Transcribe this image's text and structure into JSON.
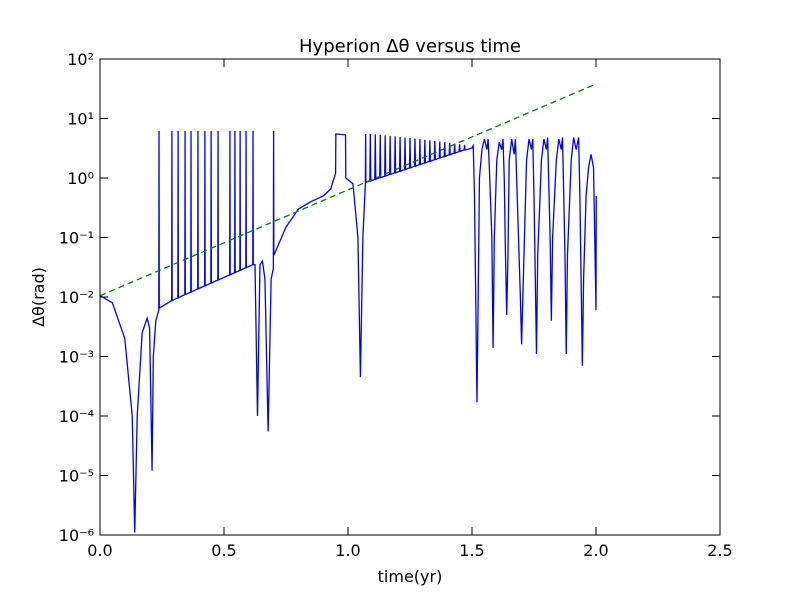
{
  "chart_data": {
    "type": "line",
    "title": "Hyperion Δθ versus time",
    "xlabel": "time(yr)",
    "ylabel": "Δθ(rad)",
    "yscale": "log",
    "xlim": [
      0,
      2.5
    ],
    "ylim": [
      1e-06,
      100
    ],
    "xticks": [
      {
        "value": 0,
        "label": "0.0"
      },
      0.5,
      {
        "value": 1,
        "label": "1.0"
      },
      1.5,
      {
        "value": 2,
        "label": "2.0"
      },
      2.5
    ],
    "yticks": [
      {
        "value": 1e-06,
        "label": "10⁻⁶"
      },
      {
        "value": 1e-05,
        "label": "10⁻⁵"
      },
      {
        "value": 0.0001,
        "label": "10⁻⁴"
      },
      {
        "value": 0.001,
        "label": "10⁻³"
      },
      {
        "value": 0.01,
        "label": "10⁻²"
      },
      {
        "value": 0.1,
        "label": "10⁻¹"
      },
      {
        "value": 1,
        "label": "10⁰"
      },
      {
        "value": 10,
        "label": "10¹"
      },
      {
        "value": 100,
        "label": "10²"
      }
    ],
    "series": [
      {
        "color": "#0000ff",
        "linestyle": "solid",
        "x": [
          0,
          0.05,
          0.1,
          0.13,
          0.14,
          0.15,
          0.17,
          0.19,
          0.2,
          0.21,
          0.215,
          0.225,
          0.237,
          0.238,
          0.239,
          0.289,
          0.29,
          0.291,
          0.314,
          0.315,
          0.316,
          0.342,
          0.343,
          0.344,
          0.366,
          0.367,
          0.368,
          0.394,
          0.395,
          0.396,
          0.422,
          0.423,
          0.424,
          0.447,
          0.448,
          0.449,
          0.475,
          0.476,
          0.477,
          0.523,
          0.524,
          0.525,
          0.543,
          0.544,
          0.545,
          0.564,
          0.565,
          0.566,
          0.588,
          0.589,
          0.59,
          0.616,
          0.617,
          0.618,
          0.625,
          0.635,
          0.645,
          0.655,
          0.665,
          0.678,
          0.69,
          0.699,
          0.7,
          0.701,
          0.75,
          0.8,
          0.85,
          0.9,
          0.93,
          0.95,
          0.951,
          0.99,
          0.991,
          1.02,
          1.04,
          1.05,
          1.06,
          1.07,
          1.071,
          1.072,
          1.088,
          1.09,
          1.092,
          1.108,
          1.11,
          1.112,
          1.128,
          1.13,
          1.132,
          1.148,
          1.15,
          1.152,
          1.168,
          1.17,
          1.172,
          1.188,
          1.19,
          1.192,
          1.208,
          1.21,
          1.212,
          1.228,
          1.23,
          1.232,
          1.248,
          1.25,
          1.252,
          1.268,
          1.27,
          1.272,
          1.288,
          1.29,
          1.292,
          1.308,
          1.31,
          1.312,
          1.328,
          1.33,
          1.332,
          1.348,
          1.35,
          1.352,
          1.368,
          1.37,
          1.372,
          1.388,
          1.39,
          1.392,
          1.408,
          1.41,
          1.412,
          1.428,
          1.43,
          1.432,
          1.448,
          1.45,
          1.452,
          1.468,
          1.47,
          1.472,
          1.48,
          1.5,
          1.505,
          1.51,
          1.515,
          1.52,
          1.525,
          1.53,
          1.54,
          1.55,
          1.56,
          1.565,
          1.57,
          1.58,
          1.585,
          1.59,
          1.6,
          1.61,
          1.62,
          1.625,
          1.63,
          1.635,
          1.64,
          1.645,
          1.65,
          1.66,
          1.67,
          1.675,
          1.68,
          1.695,
          1.7,
          1.705,
          1.72,
          1.73,
          1.74,
          1.745,
          1.75,
          1.76,
          1.765,
          1.78,
          1.79,
          1.8,
          1.805,
          1.815,
          1.82,
          1.825,
          1.84,
          1.85,
          1.86,
          1.865,
          1.875,
          1.88,
          1.885,
          1.9,
          1.91,
          1.92,
          1.93,
          1.935,
          1.94,
          1.945,
          1.95,
          1.96,
          1.97,
          1.98,
          1.99,
          1.995,
          2.0,
          2.001
        ],
        "values": [
          0.0105,
          0.008,
          0.002,
          0.0001,
          1.1e-06,
          0.0001,
          0.0025,
          0.0044,
          0.003,
          1.2e-05,
          0.001,
          0.004,
          0.006,
          6.2,
          0.0065,
          0.0087,
          6.2,
          0.0087,
          0.0097,
          6.2,
          0.0097,
          0.011,
          6.2,
          0.011,
          0.0121,
          6.2,
          0.0121,
          0.0137,
          6.2,
          0.0137,
          0.0154,
          6.2,
          0.0154,
          0.0171,
          6.2,
          0.0171,
          0.0193,
          6.2,
          0.0193,
          0.0236,
          6.2,
          0.0236,
          0.0257,
          6.2,
          0.0257,
          0.0281,
          6.2,
          0.0281,
          0.0311,
          6.2,
          0.0311,
          0.035,
          6.2,
          0.035,
          0.035,
          0.0001,
          0.035,
          0.04,
          0.02,
          5.5e-05,
          0.02,
          0.03,
          6.2,
          0.05,
          0.15,
          0.3,
          0.4,
          0.5,
          0.65,
          1.2,
          5.5,
          5.3,
          1.0,
          0.8,
          0.1,
          0.00045,
          0.1,
          0.8,
          5.5,
          0.85,
          0.89,
          5.5,
          0.89,
          0.95,
          5.4,
          0.95,
          1.01,
          5.3,
          1.01,
          1.08,
          5.2,
          1.08,
          1.15,
          5.1,
          1.15,
          1.22,
          5,
          1.22,
          1.3,
          4.9,
          1.3,
          1.39,
          4.8,
          1.39,
          1.48,
          4.7,
          1.48,
          1.58,
          4.6,
          1.58,
          1.68,
          4.5,
          1.68,
          1.79,
          4.4,
          1.79,
          1.91,
          4.3,
          1.91,
          2.03,
          4.2,
          2.03,
          2.17,
          4.1,
          2.17,
          2.31,
          4,
          2.31,
          2.46,
          3.9,
          2.46,
          2.62,
          3.8,
          2.62,
          2.79,
          3.7,
          2.79,
          2.97,
          3.6,
          2.97,
          3.0,
          3.2,
          3.5,
          0.5,
          0.01,
          0.00017,
          0.01,
          1.0,
          3.0,
          4.5,
          3.0,
          4.5,
          1.5,
          0.1,
          0.0014,
          0.1,
          2.0,
          4.0,
          3.0,
          4.5,
          1.0,
          0.05,
          0.005,
          0.05,
          2,
          4.5,
          2.5,
          4.5,
          1,
          0.01,
          0.0016,
          0.01,
          2,
          4.5,
          3,
          4.5,
          0.5,
          0.0011,
          0.05,
          2,
          4.5,
          3,
          4.8,
          0.1,
          0.004,
          0.1,
          2,
          4.5,
          3,
          4.8,
          0.05,
          0.0011,
          0.05,
          2,
          4.8,
          3,
          4.8,
          0.5,
          0.02,
          0.0007,
          0.02,
          0.5,
          1.5,
          2.5,
          1.5,
          0.1,
          0.006,
          0.5
        ]
      },
      {
        "color": "#008000",
        "linestyle": "dashed",
        "x": [
          0,
          2
        ],
        "values": [
          0.0105,
          38
        ]
      }
    ]
  }
}
